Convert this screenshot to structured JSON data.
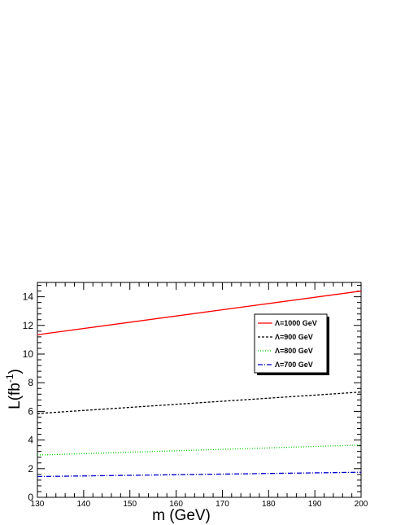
{
  "chart_data": {
    "type": "line",
    "title": "",
    "xlabel": "m (GeV)",
    "ylabel": "L(fb",
    "ylabel_sup": "-1",
    "ylabel_close": ")",
    "xlim": [
      130,
      200
    ],
    "ylim": [
      0,
      15
    ],
    "x_ticks": [
      130,
      140,
      150,
      160,
      170,
      180,
      190,
      200
    ],
    "y_ticks": [
      0,
      2,
      4,
      6,
      8,
      10,
      12,
      14
    ],
    "grid": false,
    "legend_position": "top-right",
    "series": [
      {
        "name": "Λ=1000 GeV",
        "color": "#ff0000",
        "dash": "solid",
        "x": [
          130,
          200
        ],
        "y": [
          11.35,
          14.4
        ]
      },
      {
        "name": "Λ=900 GeV",
        "color": "#000000",
        "dash": "dashed",
        "x": [
          130,
          200
        ],
        "y": [
          5.85,
          7.35
        ]
      },
      {
        "name": "Λ=800 GeV",
        "color": "#00cc00",
        "dash": "dotted",
        "x": [
          130,
          200
        ],
        "y": [
          2.95,
          3.65
        ]
      },
      {
        "name": "Λ=700 GeV",
        "color": "#0000cc",
        "dash": "dashdot",
        "x": [
          130,
          200
        ],
        "y": [
          1.45,
          1.75
        ]
      }
    ]
  }
}
